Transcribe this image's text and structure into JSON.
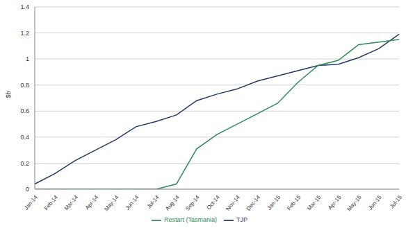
{
  "chart_data": {
    "type": "line",
    "ylabel": "$b",
    "categories": [
      "Jan-14",
      "Feb-14",
      "Mar-14",
      "Apr-14",
      "May-14",
      "Jun-14",
      "Jul-14",
      "Aug-14",
      "Sep-14",
      "Oct-14",
      "Nov-14",
      "Dec-14",
      "Jan-15",
      "Feb-15",
      "Mar-15",
      "Apr-15",
      "May-15",
      "Jun-15",
      "Jul-15"
    ],
    "series": [
      {
        "name": "TJP",
        "color": "#1f3a68",
        "values": [
          0.04,
          0.12,
          0.22,
          0.3,
          0.38,
          0.48,
          0.52,
          0.57,
          0.68,
          0.73,
          0.77,
          0.83,
          0.87,
          0.91,
          0.95,
          0.96,
          1.01,
          1.08,
          1.19
        ]
      },
      {
        "name": "Restart (Tasmania)",
        "color": "#2e8b57",
        "values": [
          0,
          0,
          0,
          0,
          0,
          0,
          0,
          0.04,
          0.31,
          0.42,
          0.5,
          0.58,
          0.66,
          0.82,
          0.95,
          0.99,
          1.11,
          1.13,
          1.15
        ]
      }
    ],
    "ylim": [
      0,
      1.4
    ],
    "yticks": [
      0,
      0.2,
      0.4,
      0.6,
      0.8,
      1,
      1.2,
      1.4
    ],
    "grid": true,
    "legend": "bottom"
  }
}
